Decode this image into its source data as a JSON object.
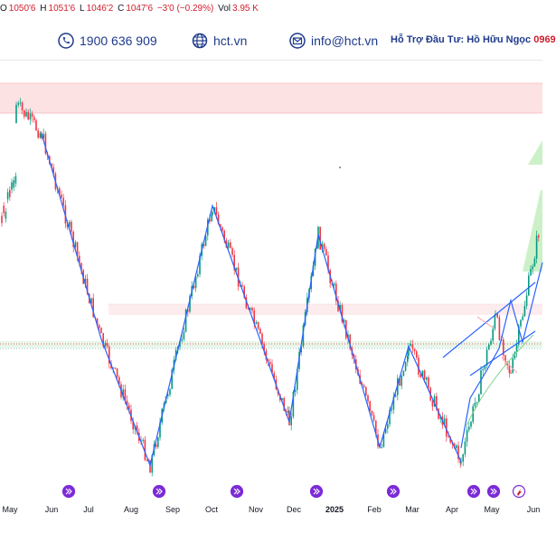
{
  "header": {
    "ohlc": {
      "o_label": "O",
      "o_value": "1050'6",
      "h_label": "H",
      "h_value": "1051'6",
      "l_label": "L",
      "l_value": "1046'2",
      "c_label": "C",
      "c_value": "1047'6",
      "change": "−3'0 (−0.29%)",
      "vol_label": "Vol",
      "vol_value": "3.95 K"
    },
    "phone": "1900 636 909",
    "website": "hct.vn",
    "email": "info@hct.vn",
    "advisor_label": "Hỗ Trợ Đầu Tư: Hồ Hữu Ngọc",
    "advisor_phone": "0969"
  },
  "colors": {
    "up": "#089981",
    "down": "#f23645",
    "trendline": "#2962ff",
    "resistance_zone": "#fde2e4",
    "projection": "#c6f0c2",
    "brand": "#1e3a8a",
    "event_icon": "#7b2bd9"
  },
  "chart_data": {
    "type": "candlestick",
    "title": "",
    "x_labels": [
      "May",
      "Jun",
      "Jul",
      "Aug",
      "Sep",
      "Oct",
      "Nov",
      "Dec",
      "2025",
      "Feb",
      "Mar",
      "Apr",
      "May",
      "Jun"
    ],
    "y_axis_visible": false,
    "grid": false,
    "zigzag_pivots_price": [
      1150,
      1142,
      1085,
      1050,
      1122,
      1062,
      1114,
      1055,
      1083,
      1051,
      1091,
      1075,
      1115
    ],
    "annotations": [
      "resistance zone",
      "support zone",
      "rising channel",
      "upward projection arrow"
    ],
    "event_markers": [
      "Jun",
      "Aug",
      "Oct",
      "Dec",
      "Feb",
      "Apr",
      "May",
      "May"
    ]
  }
}
